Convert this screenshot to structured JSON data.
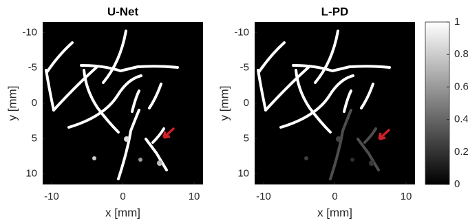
{
  "chart_data": [
    {
      "type": "image",
      "title": "U-Net",
      "xlabel": "x [mm]",
      "ylabel": "y [mm]",
      "xlim": [
        -11.25,
        11.25
      ],
      "ylim": [
        -11.5,
        11.5
      ],
      "y_reversed": true,
      "xticks": [
        -10,
        0,
        10
      ],
      "yticks": [
        -10,
        -5,
        0,
        5,
        10
      ]
    },
    {
      "type": "image",
      "title": "L-PD",
      "xlabel": "x [mm]",
      "ylabel": "y [mm]",
      "xlim": [
        -11.25,
        11.25
      ],
      "ylim": [
        -11.5,
        11.5
      ],
      "y_reversed": true,
      "xticks": [
        -10,
        0,
        10
      ],
      "yticks": [
        -10,
        -5,
        0,
        5,
        10
      ],
      "colorbar": {
        "lim": [
          0,
          1
        ],
        "ticks": [
          0,
          0.2,
          0.4,
          0.6,
          0.8,
          1
        ]
      }
    }
  ]
}
